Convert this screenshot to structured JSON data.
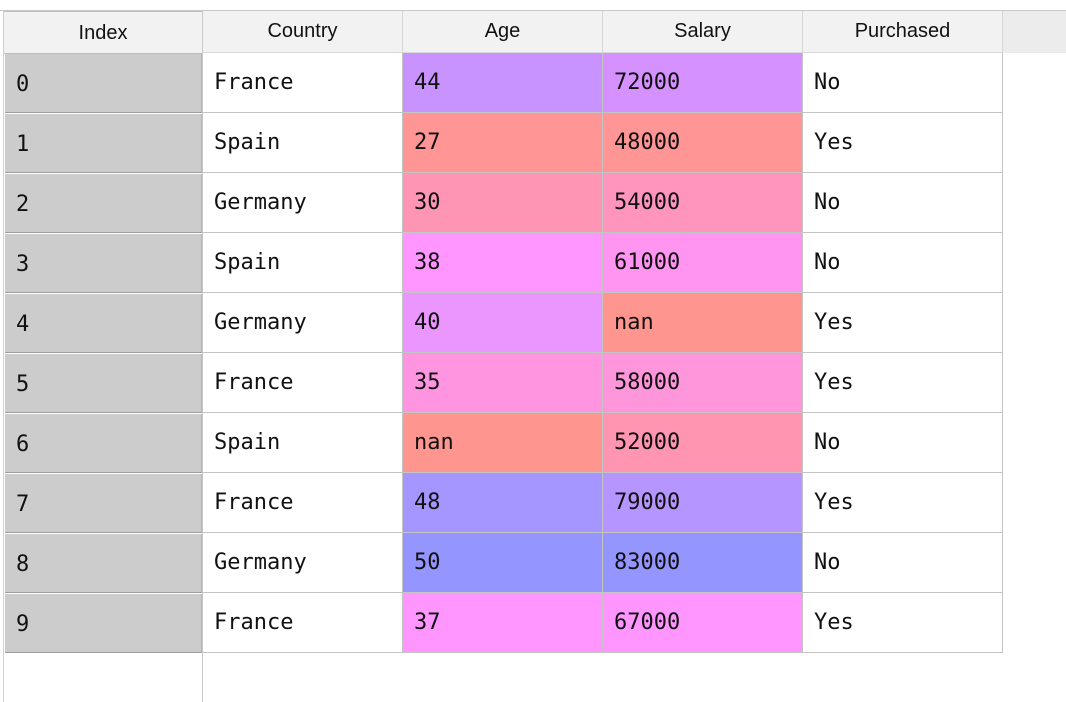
{
  "table": {
    "index_header": "Index",
    "columns": [
      "Country",
      "Age",
      "Salary",
      "Purchased"
    ],
    "rows": [
      {
        "index": "0",
        "country": "France",
        "age": "44",
        "salary": "72000",
        "purchased": "No",
        "age_color": "#c993ff",
        "salary_color": "#d591ff"
      },
      {
        "index": "1",
        "country": "Spain",
        "age": "27",
        "salary": "48000",
        "purchased": "Yes",
        "age_color": "#ff9595",
        "salary_color": "#ff9595"
      },
      {
        "index": "2",
        "country": "Germany",
        "age": "30",
        "salary": "54000",
        "purchased": "No",
        "age_color": "#ff95b5",
        "salary_color": "#ff95bd"
      },
      {
        "index": "3",
        "country": "Spain",
        "age": "38",
        "salary": "61000",
        "purchased": "No",
        "age_color": "#ff95ff",
        "salary_color": "#ff95f0"
      },
      {
        "index": "4",
        "country": "Germany",
        "age": "40",
        "salary": "nan",
        "purchased": "Yes",
        "age_color": "#eb95ff",
        "salary_color": "#ff958f"
      },
      {
        "index": "5",
        "country": "France",
        "age": "35",
        "salary": "58000",
        "purchased": "Yes",
        "age_color": "#ff95e0",
        "salary_color": "#ff95da"
      },
      {
        "index": "6",
        "country": "Spain",
        "age": "nan",
        "salary": "52000",
        "purchased": "No",
        "age_color": "#ff958f",
        "salary_color": "#ff95b0"
      },
      {
        "index": "7",
        "country": "France",
        "age": "48",
        "salary": "79000",
        "purchased": "Yes",
        "age_color": "#a595ff",
        "salary_color": "#b595ff"
      },
      {
        "index": "8",
        "country": "Germany",
        "age": "50",
        "salary": "83000",
        "purchased": "No",
        "age_color": "#9595ff",
        "salary_color": "#9595ff"
      },
      {
        "index": "9",
        "country": "France",
        "age": "37",
        "salary": "67000",
        "purchased": "Yes",
        "age_color": "#ff95ff",
        "salary_color": "#ff95ff"
      }
    ]
  },
  "colors": {
    "index_cell_bg": "#cccccc",
    "header_bg": "#f2f2f2",
    "grid_line": "#c4c4c4"
  }
}
